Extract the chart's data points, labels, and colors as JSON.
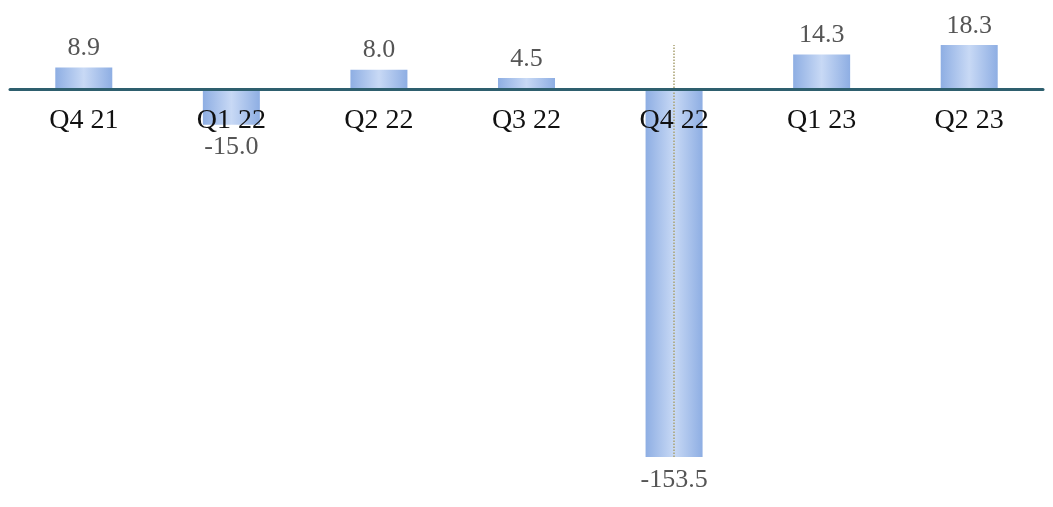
{
  "chart_data": {
    "type": "bar",
    "categories": [
      "Q4 21",
      "Q1 22",
      "Q2 22",
      "Q3 22",
      "Q4 22",
      "Q1 23",
      "Q2 23"
    ],
    "values": [
      8.9,
      -15.0,
      8.0,
      4.5,
      -153.5,
      14.3,
      18.3
    ],
    "value_labels": [
      "8.9",
      "-15.0",
      "8.0",
      "4.5",
      "-153.5",
      "14.3",
      "18.3"
    ],
    "color": "#8eaee3",
    "ref_lines": [
      {
        "axis": "x",
        "value": "Q4 22",
        "color": "#a8a070",
        "line_style": "dotted"
      }
    ],
    "grid": false
  }
}
